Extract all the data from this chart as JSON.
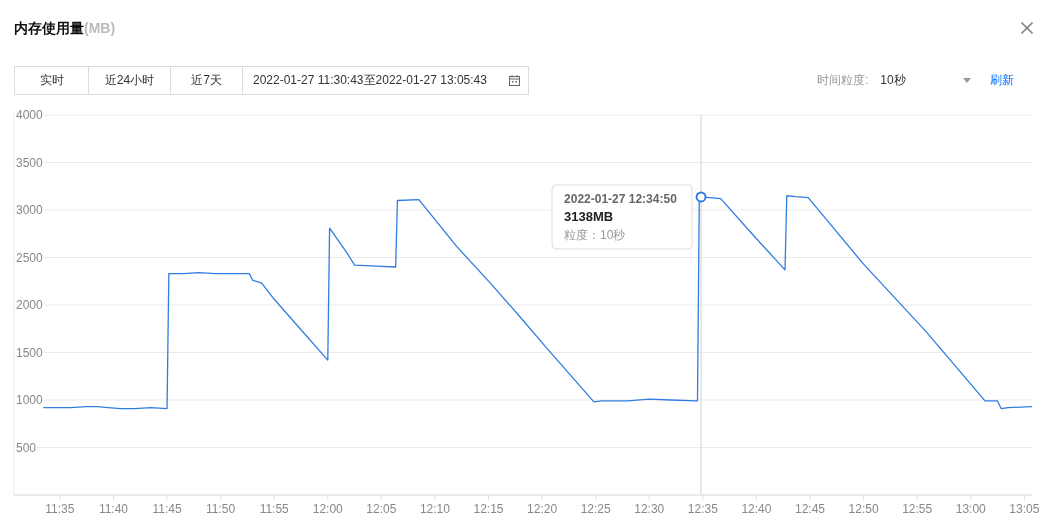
{
  "chart_data": {
    "type": "line",
    "title": "内存使用量",
    "x": [
      "2022-01-27T11:33:30",
      "2022-01-27T11:35:00",
      "2022-01-27T11:36:00",
      "2022-01-27T11:37:30",
      "2022-01-27T11:38:30",
      "2022-01-27T11:39:30",
      "2022-01-27T11:40:40",
      "2022-01-27T11:42:00",
      "2022-01-27T11:43:30",
      "2022-01-27T11:45:00",
      "2022-01-27T11:45:10",
      "2022-01-27T11:46:30",
      "2022-01-27T11:48:00",
      "2022-01-27T11:49:30",
      "2022-01-27T11:51:00",
      "2022-01-27T11:52:40",
      "2022-01-27T11:53:00",
      "2022-01-27T11:53:50",
      "2022-01-27T11:55:00",
      "2022-01-27T11:57:30",
      "2022-01-27T12:00:00",
      "2022-01-27T12:00:10",
      "2022-01-27T12:01:50",
      "2022-01-27T12:02:30",
      "2022-01-27T12:04:30",
      "2022-01-27T12:06:20",
      "2022-01-27T12:06:30",
      "2022-01-27T12:08:30",
      "2022-01-27T12:09:30",
      "2022-01-27T12:12:00",
      "2022-01-27T12:15:10",
      "2022-01-27T12:17:50",
      "2022-01-27T12:20:20",
      "2022-01-27T12:24:50",
      "2022-01-27T12:25:30",
      "2022-01-27T12:28:00",
      "2022-01-27T12:30:00",
      "2022-01-27T12:32:00",
      "2022-01-27T12:34:30",
      "2022-01-27T12:34:40",
      "2022-01-27T12:34:50",
      "2022-01-27T12:36:40",
      "2022-01-27T12:39:30",
      "2022-01-27T12:42:40",
      "2022-01-27T12:42:50",
      "2022-01-27T12:43:40",
      "2022-01-27T12:44:50",
      "2022-01-27T12:50:00",
      "2022-01-27T12:55:50",
      "2022-01-27T13:01:20",
      "2022-01-27T13:02:30",
      "2022-01-27T13:02:50",
      "2022-01-27T13:03:30",
      "2022-01-27T13:05:40"
    ],
    "values": [
      920,
      920,
      920,
      930,
      930,
      920,
      910,
      910,
      920,
      910,
      2330,
      2330,
      2340,
      2330,
      2330,
      2330,
      2260,
      2230,
      2060,
      1740,
      1420,
      2810,
      2540,
      2420,
      2410,
      2400,
      3100,
      3110,
      2970,
      2620,
      2230,
      1890,
      1560,
      980,
      990,
      990,
      1010,
      1000,
      990,
      3130,
      3138,
      3120,
      2760,
      2370,
      3150,
      3140,
      3130,
      2430,
      1720,
      990,
      990,
      910,
      920,
      930
    ],
    "color": "#2f7de1",
    "xlim": [
      "2022-01-27T11:30:43",
      "2022-01-27T13:05:43"
    ],
    "xticks": [
      {
        "value": "2022-01-27T11:35",
        "label": "11:35"
      },
      {
        "value": "2022-01-27T11:40",
        "label": "11:40"
      },
      {
        "value": "2022-01-27T11:45",
        "label": "11:45"
      },
      {
        "value": "2022-01-27T11:50",
        "label": "11:50"
      },
      {
        "value": "2022-01-27T11:55",
        "label": "11:55"
      },
      {
        "value": "2022-01-27T12:00",
        "label": "12:00"
      },
      {
        "value": "2022-01-27T12:05",
        "label": "12:05"
      },
      {
        "value": "2022-01-27T12:10",
        "label": "12:10"
      },
      {
        "value": "2022-01-27T12:15",
        "label": "12:15"
      },
      {
        "value": "2022-01-27T12:20",
        "label": "12:20"
      },
      {
        "value": "2022-01-27T12:25",
        "label": "12:25"
      },
      {
        "value": "2022-01-27T12:30",
        "label": "12:30"
      },
      {
        "value": "2022-01-27T12:35",
        "label": "12:35"
      },
      {
        "value": "2022-01-27T12:40",
        "label": "12:40"
      },
      {
        "value": "2022-01-27T12:45",
        "label": "12:45"
      },
      {
        "value": "2022-01-27T12:50",
        "label": "12:50"
      },
      {
        "value": "2022-01-27T12:55",
        "label": "12:55"
      },
      {
        "value": "2022-01-27T13:00",
        "label": "13:00"
      },
      {
        "value": "2022-01-27T13:05",
        "label": "13:05"
      }
    ],
    "ylim": [
      0,
      4000
    ],
    "yticks": [
      500,
      1000,
      1500,
      2000,
      2500,
      3000,
      3500,
      4000
    ],
    "grid": "y",
    "ref_lines": [
      {
        "axis": "x",
        "value": "2022-01-27T12:34:50",
        "color": "#d9d9d9"
      }
    ],
    "annotations": [
      "(MB)",
      "实时",
      "近24小时",
      "近7天",
      "2022-01-27 11:30:43至2022-01-27 13:05:43",
      "时间粒度:",
      "10秒",
      "刷新",
      "2022-01-27 12:34:50",
      "3138MB",
      "粒度：10秒"
    ]
  }
}
